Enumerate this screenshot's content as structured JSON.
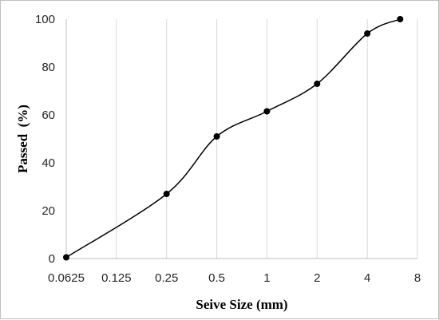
{
  "chart_data": {
    "type": "line",
    "title": "",
    "xlabel": "Seive Size (mm)",
    "ylabel": "Passed  (%)",
    "x_scale": "log2",
    "xlim": [
      0.0625,
      8
    ],
    "ylim": [
      0,
      100
    ],
    "x_ticks": [
      0.0625,
      0.125,
      0.25,
      0.5,
      1,
      2,
      4,
      8
    ],
    "x_tick_labels": [
      "0.0625",
      "0.125",
      "0.25",
      "0.5",
      "1",
      "2",
      "4",
      "8"
    ],
    "y_ticks": [
      0,
      20,
      40,
      60,
      80,
      100
    ],
    "y_tick_labels": [
      "0",
      "20",
      "40",
      "60",
      "80",
      "100"
    ],
    "grid": "vertical",
    "legend": "none",
    "series": [
      {
        "x": [
          0.0625,
          0.25,
          0.5,
          1,
          2,
          4,
          6.3
        ],
        "y": [
          0.5,
          27,
          51,
          61.5,
          73,
          94,
          100
        ],
        "color": "#000000",
        "marker": "circle",
        "smooth": true
      }
    ]
  }
}
